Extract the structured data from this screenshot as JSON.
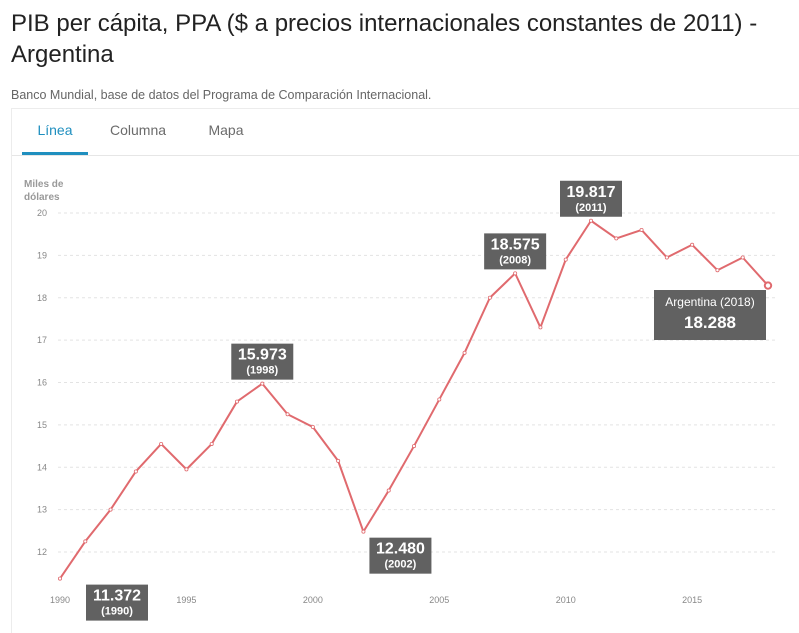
{
  "header": {
    "title": "PIB per cápita, PPA ($ a precios internacionales constantes de 2011) - Argentina",
    "source": "Banco Mundial, base de datos del Programa de Comparación Internacional."
  },
  "tabs": [
    {
      "label": "Línea",
      "active": true
    },
    {
      "label": "Columna",
      "active": false
    },
    {
      "label": "Mapa",
      "active": false
    }
  ],
  "colors": {
    "line": "#e06a6e",
    "accent": "#1f8fbf",
    "annotation_bg": "#616161"
  },
  "chart_data": {
    "type": "line",
    "ylabel": "Miles de dólares",
    "yticks": [
      "12",
      "13",
      "14",
      "15",
      "16",
      "17",
      "18",
      "19",
      "20"
    ],
    "xticks": [
      "1990",
      "1995",
      "2000",
      "2005",
      "2010",
      "2015"
    ],
    "xlim": [
      1990,
      2018
    ],
    "ylim": [
      11.4,
      20
    ],
    "grid": true,
    "series": [
      {
        "x": [
          1990,
          1991,
          1992,
          1993,
          1994,
          1995,
          1996,
          1997,
          1998,
          1999,
          2000,
          2001,
          2002,
          2003,
          2004,
          2005,
          2006,
          2007,
          2008,
          2009,
          2010,
          2011,
          2012,
          2013,
          2014,
          2015,
          2016,
          2017,
          2018
        ],
        "values": [
          11.372,
          12.25,
          13.0,
          13.9,
          14.55,
          13.95,
          14.55,
          15.55,
          15.973,
          15.25,
          14.95,
          14.15,
          12.48,
          13.45,
          14.5,
          15.6,
          16.7,
          18.0,
          18.575,
          17.3,
          18.9,
          19.817,
          19.4,
          19.6,
          18.95,
          19.25,
          18.65,
          18.95,
          18.288
        ]
      }
    ],
    "annotations": [
      {
        "value": "11.372",
        "year": "(1990)"
      },
      {
        "value": "15.973",
        "year": "(1998)"
      },
      {
        "value": "12.480",
        "year": "(2002)"
      },
      {
        "value": "18.575",
        "year": "(2008)"
      },
      {
        "value": "19.817",
        "year": "(2011)"
      }
    ],
    "last_point": {
      "label": "Argentina (2018)",
      "value": "18.288"
    }
  }
}
